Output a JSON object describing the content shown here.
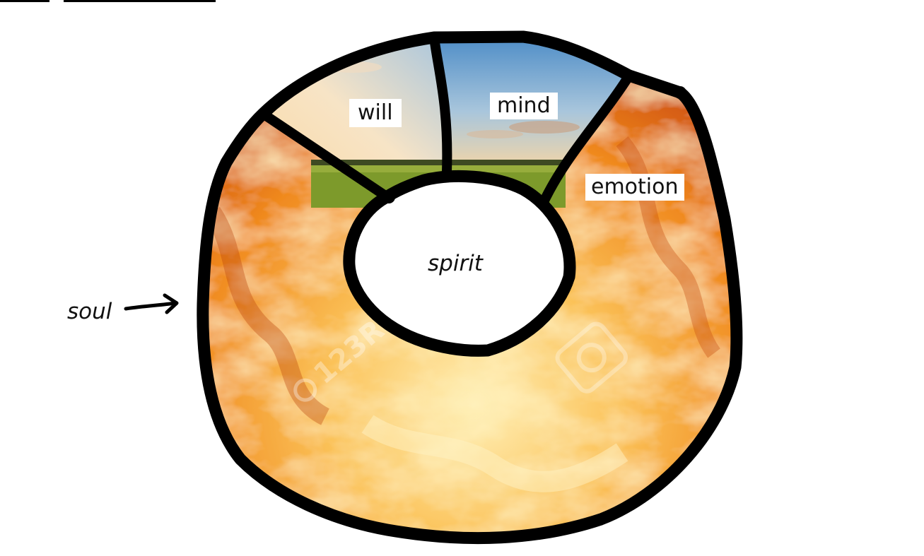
{
  "labels": {
    "will": "will",
    "mind": "mind",
    "emotion": "emotion",
    "spirit": "spirit",
    "soul": "soul"
  },
  "watermark": "123RF",
  "colors": {
    "outline": "#000000",
    "fire_light": "#fde9a8",
    "fire_mid": "#f7a52a",
    "fire_dark": "#d9520e",
    "sky_top": "#5b93c8",
    "sky_horizon": "#f6d7a8",
    "field": "#7d9a2b"
  }
}
